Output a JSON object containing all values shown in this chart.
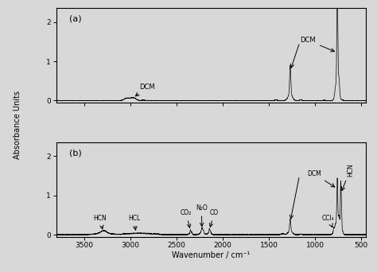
{
  "xlim": [
    3800,
    450
  ],
  "ylim_a": [
    -0.05,
    2.35
  ],
  "ylim_b": [
    -0.05,
    2.35
  ],
  "yticks": [
    0.0,
    1.0,
    2.0
  ],
  "xticks": [
    3500,
    3000,
    2500,
    2000,
    1500,
    1000,
    500
  ],
  "xlabel": "Wavenumber / cm⁻¹",
  "ylabel": "Absorbance Units",
  "bg_color": "#d8d8d8",
  "panel_a_label": "(a)",
  "panel_b_label": "(b)"
}
